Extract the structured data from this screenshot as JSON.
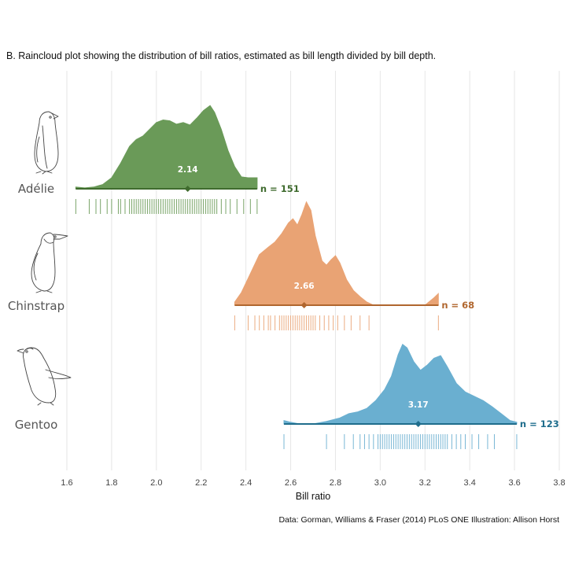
{
  "chart_data": {
    "type": "raincloud",
    "title": "B. Raincloud plot showing the distribution of bill ratios, estimated as bill length divided by bill depth.",
    "xlabel": "Bill ratio",
    "xlim": [
      1.6,
      3.8
    ],
    "xticks": [
      "1.6",
      "1.8",
      "2.0",
      "2.2",
      "2.4",
      "2.6",
      "2.8",
      "3.0",
      "3.2",
      "3.4",
      "3.6",
      "3.8"
    ],
    "caption": "Data: Gorman, Williams & Fraser (2014) PLoS ONE Illustration: Allison Horst",
    "grid": true,
    "series": [
      {
        "name": "Adélie",
        "color": "#6a9a58",
        "dark_color": "#3f6b2e",
        "mean": 2.14,
        "mean_label": "2.14",
        "n_label": "n = 151",
        "range": [
          1.64,
          2.45
        ],
        "density": [
          [
            1.64,
            0.02
          ],
          [
            1.68,
            0.01
          ],
          [
            1.72,
            0.02
          ],
          [
            1.76,
            0.05
          ],
          [
            1.8,
            0.13
          ],
          [
            1.84,
            0.3
          ],
          [
            1.88,
            0.5
          ],
          [
            1.91,
            0.58
          ],
          [
            1.94,
            0.62
          ],
          [
            1.97,
            0.7
          ],
          [
            2.0,
            0.78
          ],
          [
            2.03,
            0.81
          ],
          [
            2.06,
            0.8
          ],
          [
            2.09,
            0.76
          ],
          [
            2.12,
            0.78
          ],
          [
            2.15,
            0.75
          ],
          [
            2.18,
            0.83
          ],
          [
            2.21,
            0.92
          ],
          [
            2.24,
            0.98
          ],
          [
            2.26,
            0.9
          ],
          [
            2.29,
            0.7
          ],
          [
            2.32,
            0.45
          ],
          [
            2.35,
            0.26
          ],
          [
            2.38,
            0.14
          ],
          [
            2.41,
            0.13
          ],
          [
            2.45,
            0.13
          ]
        ],
        "observations": [
          1.64,
          1.7,
          1.73,
          1.75,
          1.78,
          1.8,
          1.83,
          1.84,
          1.86,
          1.88,
          1.89,
          1.9,
          1.91,
          1.92,
          1.93,
          1.94,
          1.95,
          1.96,
          1.97,
          1.98,
          1.99,
          2.0,
          2.01,
          2.02,
          2.03,
          2.04,
          2.05,
          2.06,
          2.07,
          2.08,
          2.09,
          2.1,
          2.11,
          2.12,
          2.13,
          2.14,
          2.15,
          2.16,
          2.17,
          2.18,
          2.19,
          2.2,
          2.21,
          2.22,
          2.23,
          2.24,
          2.25,
          2.26,
          2.27,
          2.29,
          2.31,
          2.33,
          2.36,
          2.39,
          2.42,
          2.45
        ]
      },
      {
        "name": "Chinstrap",
        "color": "#e9a374",
        "dark_color": "#b0662e",
        "mean": 2.66,
        "mean_label": "2.66",
        "n_label": "n = 68",
        "range": [
          2.35,
          3.26
        ],
        "density": [
          [
            2.35,
            0.03
          ],
          [
            2.38,
            0.12
          ],
          [
            2.42,
            0.3
          ],
          [
            2.46,
            0.48
          ],
          [
            2.5,
            0.55
          ],
          [
            2.53,
            0.6
          ],
          [
            2.56,
            0.68
          ],
          [
            2.59,
            0.78
          ],
          [
            2.61,
            0.82
          ],
          [
            2.63,
            0.76
          ],
          [
            2.65,
            0.86
          ],
          [
            2.67,
            0.98
          ],
          [
            2.69,
            0.9
          ],
          [
            2.71,
            0.66
          ],
          [
            2.74,
            0.42
          ],
          [
            2.76,
            0.38
          ],
          [
            2.78,
            0.43
          ],
          [
            2.8,
            0.47
          ],
          [
            2.82,
            0.4
          ],
          [
            2.85,
            0.24
          ],
          [
            2.88,
            0.14
          ],
          [
            2.91,
            0.08
          ],
          [
            2.94,
            0.03
          ],
          [
            2.97,
            0.0
          ],
          [
            3.0,
            0.0
          ],
          [
            3.1,
            0.0
          ],
          [
            3.2,
            0.0
          ],
          [
            3.24,
            0.07
          ],
          [
            3.26,
            0.11
          ]
        ],
        "observations": [
          2.35,
          2.41,
          2.44,
          2.46,
          2.48,
          2.5,
          2.51,
          2.53,
          2.55,
          2.56,
          2.57,
          2.58,
          2.59,
          2.6,
          2.61,
          2.62,
          2.63,
          2.64,
          2.65,
          2.66,
          2.67,
          2.68,
          2.69,
          2.7,
          2.71,
          2.73,
          2.75,
          2.77,
          2.79,
          2.81,
          2.84,
          2.87,
          2.91,
          2.95,
          3.26
        ]
      },
      {
        "name": "Gentoo",
        "color": "#6aafd0",
        "dark_color": "#1f6d8c",
        "mean": 3.17,
        "mean_label": "3.17",
        "n_label": "n = 123",
        "range": [
          2.57,
          3.61
        ],
        "density": [
          [
            2.57,
            0.04
          ],
          [
            2.6,
            0.02
          ],
          [
            2.64,
            0.0
          ],
          [
            2.7,
            0.0
          ],
          [
            2.76,
            0.03
          ],
          [
            2.82,
            0.07
          ],
          [
            2.86,
            0.12
          ],
          [
            2.9,
            0.14
          ],
          [
            2.94,
            0.18
          ],
          [
            2.98,
            0.27
          ],
          [
            3.02,
            0.4
          ],
          [
            3.05,
            0.55
          ],
          [
            3.08,
            0.8
          ],
          [
            3.1,
            0.92
          ],
          [
            3.12,
            0.88
          ],
          [
            3.15,
            0.72
          ],
          [
            3.18,
            0.62
          ],
          [
            3.21,
            0.68
          ],
          [
            3.24,
            0.76
          ],
          [
            3.27,
            0.79
          ],
          [
            3.3,
            0.66
          ],
          [
            3.34,
            0.47
          ],
          [
            3.38,
            0.37
          ],
          [
            3.42,
            0.32
          ],
          [
            3.46,
            0.27
          ],
          [
            3.5,
            0.2
          ],
          [
            3.54,
            0.12
          ],
          [
            3.58,
            0.04
          ],
          [
            3.61,
            0.02
          ]
        ],
        "observations": [
          2.57,
          2.76,
          2.84,
          2.88,
          2.91,
          2.93,
          2.95,
          2.97,
          2.99,
          3.0,
          3.01,
          3.02,
          3.03,
          3.04,
          3.05,
          3.06,
          3.07,
          3.08,
          3.09,
          3.1,
          3.11,
          3.12,
          3.13,
          3.14,
          3.15,
          3.16,
          3.17,
          3.18,
          3.19,
          3.2,
          3.21,
          3.22,
          3.23,
          3.24,
          3.25,
          3.26,
          3.27,
          3.28,
          3.29,
          3.3,
          3.32,
          3.34,
          3.36,
          3.38,
          3.41,
          3.44,
          3.48,
          3.51,
          3.61
        ]
      }
    ]
  }
}
